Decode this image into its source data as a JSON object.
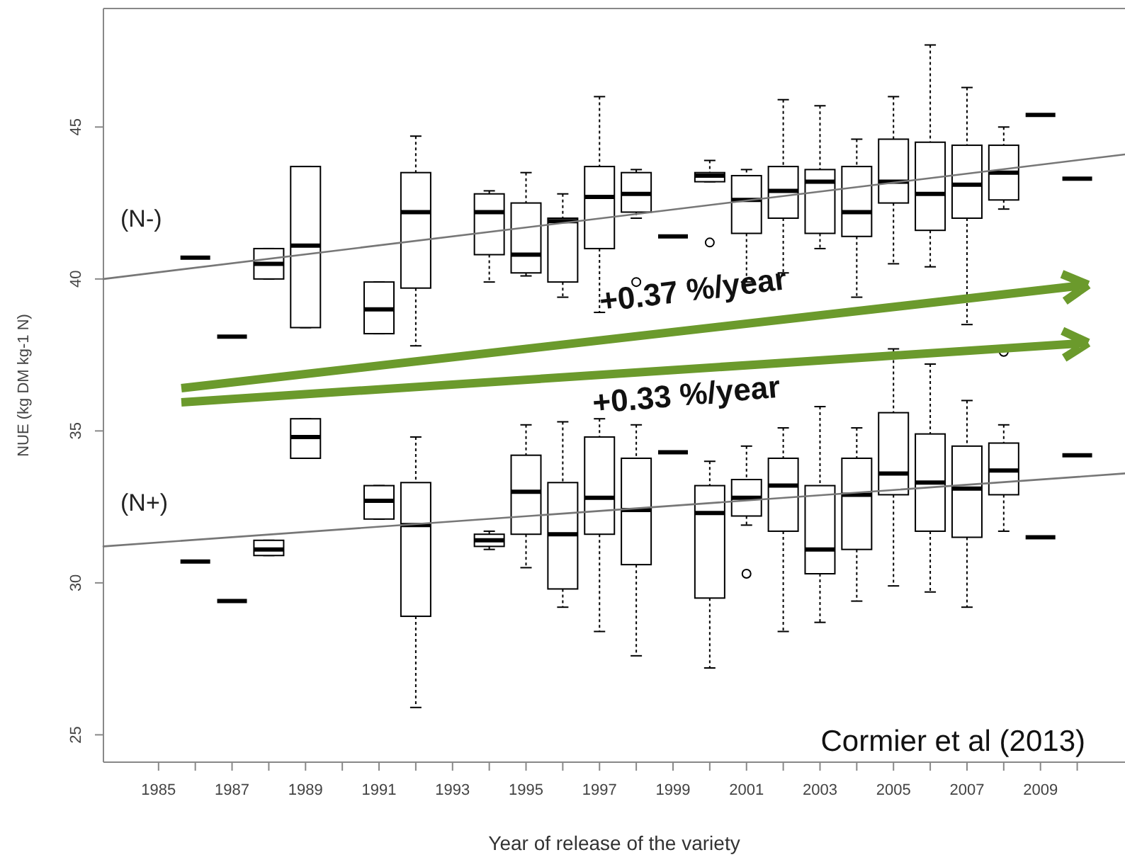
{
  "chart_data": {
    "type": "box",
    "xlabel": "Year of release of the variety",
    "ylabel": "NUE (kg DM kg-1 N)",
    "xlim": [
      1983.5,
      2011.3
    ],
    "ylim": [
      24.1,
      48.9
    ],
    "xticks": [
      1985,
      {
        "value": 1986,
        "label": null
      },
      1987,
      {
        "value": 1988,
        "label": null
      },
      1989,
      {
        "value": 1990,
        "label": null
      },
      1991,
      {
        "value": 1992,
        "label": null
      },
      1993,
      {
        "value": 1994,
        "label": null
      },
      1995,
      {
        "value": 1996,
        "label": null
      },
      1997,
      {
        "value": 1998,
        "label": null
      },
      1999,
      {
        "value": 2000,
        "label": null
      },
      2001,
      {
        "value": 2002,
        "label": null
      },
      2003,
      {
        "value": 2004,
        "label": null
      },
      2005,
      {
        "value": 2006,
        "label": null
      },
      2007,
      {
        "value": 2008,
        "label": null
      },
      2009,
      {
        "value": 2010,
        "label": null
      }
    ],
    "yticks": [
      25,
      30,
      35,
      40,
      45
    ],
    "grid": false,
    "annotations": [
      "+0.37 %/year",
      "+0.33 %/year",
      "Cormier et al (2013)"
    ],
    "series": [
      {
        "name": "(N-)",
        "color": "#000000",
        "x": [
          1986,
          1987,
          1988,
          1989,
          1991,
          1992,
          1994,
          1995,
          1996,
          1997,
          1998,
          1999,
          2000,
          2001,
          2002,
          2003,
          2004,
          2005,
          2006,
          2007,
          2008,
          2009,
          2010
        ],
        "boxes": [
          {
            "low": 40.7,
            "q1": 40.7,
            "median": 40.7,
            "q3": 40.7,
            "high": 40.7
          },
          {
            "low": 38.1,
            "q1": 38.1,
            "median": 38.1,
            "q3": 38.1,
            "high": 38.1
          },
          {
            "low": 40.0,
            "q1": 40.0,
            "median": 40.5,
            "q3": 41.0,
            "high": 41.0
          },
          {
            "low": 38.4,
            "q1": 38.4,
            "median": 41.1,
            "q3": 43.7,
            "high": 43.7
          },
          {
            "low": 38.2,
            "q1": 38.2,
            "median": 39.0,
            "q3": 39.9,
            "high": 39.9
          },
          {
            "low": 37.8,
            "q1": 39.7,
            "median": 42.2,
            "q3": 43.5,
            "high": 44.7
          },
          {
            "low": 39.9,
            "q1": 40.8,
            "median": 42.2,
            "q3": 42.8,
            "high": 42.9
          },
          {
            "low": 40.1,
            "q1": 40.2,
            "median": 40.8,
            "q3": 42.5,
            "high": 43.5
          },
          {
            "low": 39.4,
            "q1": 39.9,
            "median": 41.9,
            "q3": 42.0,
            "high": 42.8
          },
          {
            "low": 38.9,
            "q1": 41.0,
            "median": 42.7,
            "q3": 43.7,
            "high": 46.0
          },
          {
            "low": 42.0,
            "q1": 42.2,
            "median": 42.8,
            "q3": 43.5,
            "high": 43.6,
            "outliers": [
              39.9
            ]
          },
          {
            "low": 41.4,
            "q1": 41.4,
            "median": 41.4,
            "q3": 41.4,
            "high": 41.4
          },
          {
            "low": 43.2,
            "q1": 43.2,
            "median": 43.4,
            "q3": 43.5,
            "high": 43.9,
            "outliers": [
              41.2
            ]
          },
          {
            "low": 39.9,
            "q1": 41.5,
            "median": 42.6,
            "q3": 43.4,
            "high": 43.6
          },
          {
            "low": 40.2,
            "q1": 42.0,
            "median": 42.9,
            "q3": 43.7,
            "high": 45.9
          },
          {
            "low": 41.0,
            "q1": 41.5,
            "median": 43.2,
            "q3": 43.6,
            "high": 45.7
          },
          {
            "low": 39.4,
            "q1": 41.4,
            "median": 42.2,
            "q3": 43.7,
            "high": 44.6
          },
          {
            "low": 40.5,
            "q1": 42.5,
            "median": 43.2,
            "q3": 44.6,
            "high": 46.0
          },
          {
            "low": 40.4,
            "q1": 41.6,
            "median": 42.8,
            "q3": 44.5,
            "high": 47.7
          },
          {
            "low": 38.5,
            "q1": 42.0,
            "median": 43.1,
            "q3": 44.4,
            "high": 46.3
          },
          {
            "low": 42.3,
            "q1": 42.6,
            "median": 43.5,
            "q3": 44.4,
            "high": 45.0
          },
          {
            "low": 45.4,
            "q1": 45.4,
            "median": 45.4,
            "q3": 45.4,
            "high": 45.4
          },
          {
            "low": 43.3,
            "q1": 43.3,
            "median": 43.3,
            "q3": 43.3,
            "high": 43.3
          }
        ]
      },
      {
        "name": "(N+)",
        "color": "#000000",
        "x": [
          1986,
          1987,
          1988,
          1989,
          1991,
          1992,
          1994,
          1995,
          1996,
          1997,
          1998,
          1999,
          2000,
          2001,
          2002,
          2003,
          2004,
          2005,
          2006,
          2007,
          2008,
          2009,
          2010
        ],
        "boxes": [
          {
            "low": 30.7,
            "q1": 30.7,
            "median": 30.7,
            "q3": 30.7,
            "high": 30.7
          },
          {
            "low": 29.4,
            "q1": 29.4,
            "median": 29.4,
            "q3": 29.4,
            "high": 29.4
          },
          {
            "low": 30.9,
            "q1": 30.9,
            "median": 31.1,
            "q3": 31.4,
            "high": 31.4
          },
          {
            "low": 34.1,
            "q1": 34.1,
            "median": 34.8,
            "q3": 35.4,
            "high": 35.4
          },
          {
            "low": 32.1,
            "q1": 32.1,
            "median": 32.7,
            "q3": 33.2,
            "high": 33.2
          },
          {
            "low": 25.9,
            "q1": 28.9,
            "median": 31.9,
            "q3": 33.3,
            "high": 34.8
          },
          {
            "low": 31.1,
            "q1": 31.2,
            "median": 31.4,
            "q3": 31.6,
            "high": 31.7
          },
          {
            "low": 30.5,
            "q1": 31.6,
            "median": 33.0,
            "q3": 34.2,
            "high": 35.2
          },
          {
            "low": 29.2,
            "q1": 29.8,
            "median": 31.6,
            "q3": 33.3,
            "high": 35.3
          },
          {
            "low": 28.4,
            "q1": 31.6,
            "median": 32.8,
            "q3": 34.8,
            "high": 35.4
          },
          {
            "low": 27.6,
            "q1": 30.6,
            "median": 32.4,
            "q3": 34.1,
            "high": 35.2
          },
          {
            "low": 34.3,
            "q1": 34.3,
            "median": 34.3,
            "q3": 34.3,
            "high": 34.3
          },
          {
            "low": 27.2,
            "q1": 29.5,
            "median": 32.3,
            "q3": 33.2,
            "high": 34.0
          },
          {
            "low": 31.9,
            "q1": 32.2,
            "median": 32.8,
            "q3": 33.4,
            "high": 34.5,
            "outliers": [
              30.3
            ]
          },
          {
            "low": 28.4,
            "q1": 31.7,
            "median": 33.2,
            "q3": 34.1,
            "high": 35.1
          },
          {
            "low": 28.7,
            "q1": 30.3,
            "median": 31.1,
            "q3": 33.2,
            "high": 35.8
          },
          {
            "low": 29.4,
            "q1": 31.1,
            "median": 32.9,
            "q3": 34.1,
            "high": 35.1
          },
          {
            "low": 29.9,
            "q1": 32.9,
            "median": 33.6,
            "q3": 35.6,
            "high": 37.7
          },
          {
            "low": 29.7,
            "q1": 31.7,
            "median": 33.3,
            "q3": 34.9,
            "high": 37.2
          },
          {
            "low": 29.2,
            "q1": 31.5,
            "median": 33.1,
            "q3": 34.5,
            "high": 36.0
          },
          {
            "low": 31.7,
            "q1": 32.9,
            "median": 33.7,
            "q3": 34.6,
            "high": 35.2,
            "outliers": [
              37.6
            ]
          },
          {
            "low": 31.5,
            "q1": 31.5,
            "median": 31.5,
            "q3": 31.5,
            "high": 31.5
          },
          {
            "low": 34.2,
            "q1": 34.2,
            "median": 34.2,
            "q3": 34.2,
            "high": 34.2
          }
        ]
      },
      {
        "type": "line",
        "color": "#777777",
        "x": [
          1983.5,
          2011.3
        ],
        "values": [
          40.0,
          44.1
        ]
      },
      {
        "type": "line",
        "color": "#777777",
        "x": [
          1983.5,
          2011.3
        ],
        "values": [
          31.2,
          33.6
        ]
      }
    ]
  }
}
